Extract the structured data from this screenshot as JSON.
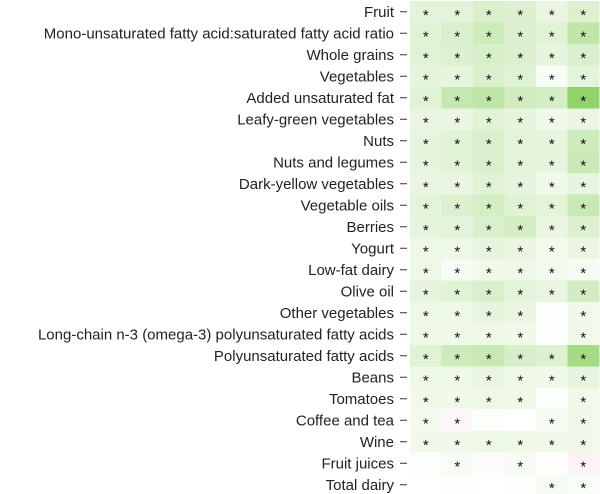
{
  "chart_data": {
    "type": "heatmap",
    "title": "",
    "xlabel": "",
    "ylabel": "",
    "significance_marker": "*",
    "color_scale": {
      "min_value": -1,
      "max_value": 1,
      "negative_color": "#f7c9d5",
      "neutral_color": "#ffffff",
      "positive_color": "#66c12f"
    },
    "columns": 6,
    "rows": [
      {
        "label": "Fruit",
        "values": [
          0.18,
          0.18,
          0.24,
          0.22,
          0.14,
          0.22
        ],
        "significant": [
          true,
          true,
          true,
          true,
          true,
          true
        ]
      },
      {
        "label": "Mono-unsaturated fatty acid:saturated fatty acid ratio",
        "values": [
          0.2,
          0.24,
          0.32,
          0.22,
          0.2,
          0.42
        ],
        "significant": [
          true,
          true,
          true,
          true,
          true,
          true
        ]
      },
      {
        "label": "Whole grains",
        "values": [
          0.2,
          0.22,
          0.26,
          0.22,
          0.16,
          0.24
        ],
        "significant": [
          true,
          true,
          true,
          true,
          true,
          true
        ]
      },
      {
        "label": "Vegetables",
        "values": [
          0.16,
          0.16,
          0.24,
          0.2,
          0.05,
          0.18
        ],
        "significant": [
          true,
          true,
          true,
          true,
          true,
          true
        ]
      },
      {
        "label": "Added unsaturated fat",
        "values": [
          0.2,
          0.38,
          0.42,
          0.3,
          0.28,
          0.72
        ],
        "significant": [
          true,
          true,
          true,
          true,
          true,
          true
        ]
      },
      {
        "label": "Leafy-green vegetables",
        "values": [
          0.14,
          0.14,
          0.2,
          0.16,
          0.1,
          0.14
        ],
        "significant": [
          true,
          true,
          true,
          true,
          true,
          true
        ]
      },
      {
        "label": "Nuts",
        "values": [
          0.16,
          0.2,
          0.24,
          0.18,
          0.16,
          0.32
        ],
        "significant": [
          true,
          true,
          true,
          true,
          true,
          true
        ]
      },
      {
        "label": "Nuts and legumes",
        "values": [
          0.16,
          0.2,
          0.24,
          0.18,
          0.16,
          0.34
        ],
        "significant": [
          true,
          true,
          true,
          true,
          true,
          true
        ]
      },
      {
        "label": "Dark-yellow vegetables",
        "values": [
          0.14,
          0.14,
          0.2,
          0.16,
          0.1,
          0.16
        ],
        "significant": [
          true,
          true,
          true,
          true,
          true,
          true
        ]
      },
      {
        "label": "Vegetable oils",
        "values": [
          0.18,
          0.22,
          0.28,
          0.2,
          0.18,
          0.36
        ],
        "significant": [
          true,
          true,
          true,
          true,
          true,
          true
        ]
      },
      {
        "label": "Berries",
        "values": [
          0.16,
          0.18,
          0.24,
          0.28,
          0.14,
          0.22
        ],
        "significant": [
          true,
          true,
          true,
          true,
          true,
          true
        ]
      },
      {
        "label": "Yogurt",
        "values": [
          0.12,
          0.12,
          0.16,
          0.14,
          0.08,
          0.14
        ],
        "significant": [
          true,
          true,
          true,
          true,
          true,
          true
        ]
      },
      {
        "label": "Low-fat dairy",
        "values": [
          0.12,
          0.05,
          0.1,
          0.12,
          0.08,
          0.06
        ],
        "significant": [
          true,
          true,
          true,
          true,
          true,
          true
        ]
      },
      {
        "label": "Olive oil",
        "values": [
          0.16,
          0.2,
          0.24,
          0.18,
          0.14,
          0.3
        ],
        "significant": [
          true,
          true,
          true,
          true,
          true,
          true
        ]
      },
      {
        "label": "Other vegetables",
        "values": [
          0.12,
          0.12,
          0.16,
          0.14,
          0.02,
          0.1
        ],
        "significant": [
          true,
          true,
          true,
          true,
          false,
          true
        ]
      },
      {
        "label": "Long-chain n-3 (omega-3) polyunsaturated fatty acids",
        "values": [
          0.12,
          0.1,
          0.12,
          0.1,
          0.02,
          0.1
        ],
        "significant": [
          true,
          true,
          true,
          true,
          false,
          true
        ]
      },
      {
        "label": "Polyunsaturated fatty acids",
        "values": [
          0.2,
          0.32,
          0.36,
          0.26,
          0.22,
          0.58
        ],
        "significant": [
          true,
          true,
          true,
          true,
          true,
          true
        ]
      },
      {
        "label": "Beans",
        "values": [
          0.12,
          0.12,
          0.14,
          0.12,
          0.1,
          0.16
        ],
        "significant": [
          true,
          true,
          true,
          true,
          true,
          true
        ]
      },
      {
        "label": "Tomatoes",
        "values": [
          0.1,
          0.1,
          0.12,
          0.1,
          0.02,
          0.1
        ],
        "significant": [
          true,
          true,
          true,
          true,
          false,
          true
        ]
      },
      {
        "label": "Coffee and tea",
        "values": [
          0.08,
          -0.14,
          0.02,
          0.0,
          0.06,
          0.1
        ],
        "significant": [
          true,
          true,
          false,
          false,
          true,
          true
        ]
      },
      {
        "label": "Wine",
        "values": [
          0.1,
          0.1,
          0.12,
          0.12,
          0.1,
          0.1
        ],
        "significant": [
          true,
          true,
          true,
          true,
          true,
          true
        ]
      },
      {
        "label": "Fruit juices",
        "values": [
          0.02,
          0.06,
          -0.08,
          0.06,
          -0.06,
          -0.22
        ],
        "significant": [
          false,
          true,
          false,
          true,
          false,
          true
        ]
      },
      {
        "label": "Total dairy",
        "values": [
          0.0,
          -0.06,
          0.0,
          0.02,
          0.06,
          0.04
        ],
        "significant": [
          false,
          false,
          false,
          false,
          true,
          true
        ]
      }
    ]
  }
}
